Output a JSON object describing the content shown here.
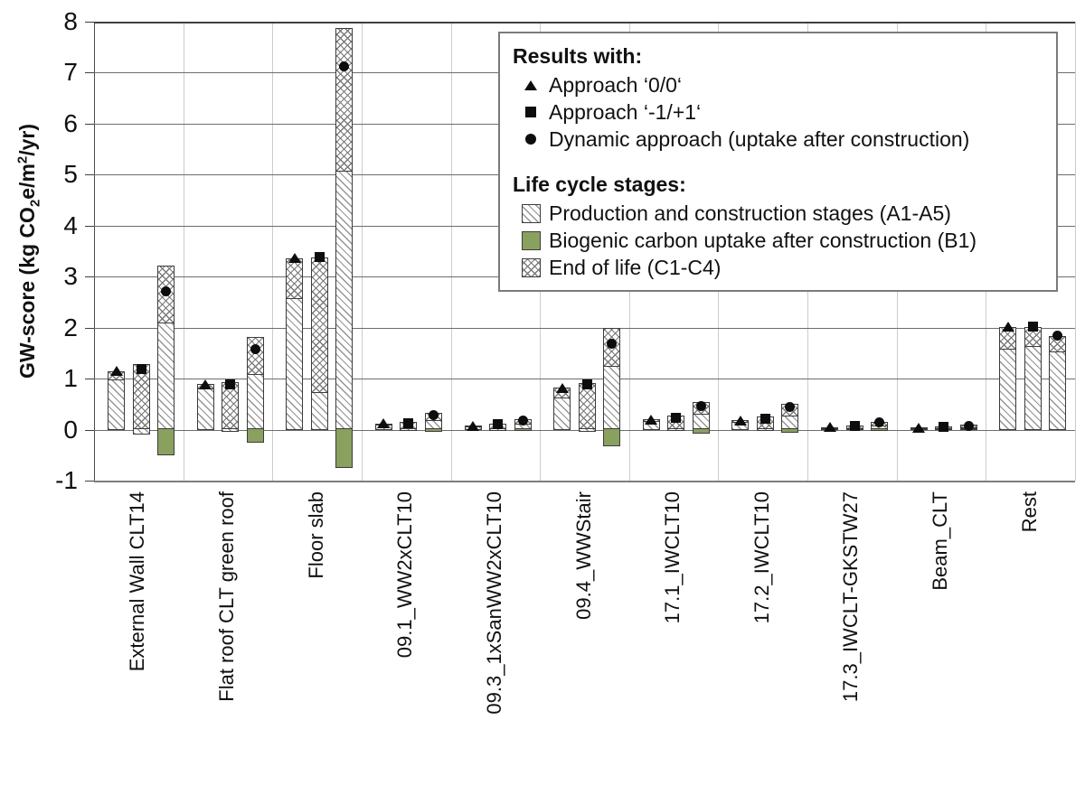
{
  "colors": {
    "biogenic_green": "#8aa05f",
    "bar_border": "#3b3b3b",
    "gridline": "#6d6d6d",
    "category_gridline": "#cccccc",
    "marker_black": "#0d0d0d"
  },
  "axis": {
    "ylabel_parts": {
      "p1": "GW-score (kg CO",
      "sub": "2",
      "p2": "e/m",
      "sup": "2",
      "p3": "/yr)"
    },
    "yticks": [
      8,
      7,
      6,
      5,
      4,
      3,
      2,
      1,
      0,
      -1
    ]
  },
  "legend": {
    "results_title": "Results with:",
    "approaches": [
      {
        "label": "Approach ‘0/0‘",
        "marker": "triangle"
      },
      {
        "label": "Approach ‘-1/+1‘",
        "marker": "square"
      },
      {
        "label": "Dynamic approach (uptake after construction)",
        "marker": "circle"
      }
    ],
    "stages_title": "Life cycle stages:",
    "stages": [
      {
        "label": "Production and construction stages (A1-A5)",
        "pattern": "diagonal-hatch"
      },
      {
        "label": "Biogenic carbon uptake after construction (B1)",
        "pattern": "solid-green",
        "color": "#8aa05f"
      },
      {
        "label": "End of life (C1-C4)",
        "pattern": "crosshatch"
      }
    ]
  },
  "chart_data": {
    "type": "bar",
    "variant": "grouped-stacked",
    "title": "",
    "ylabel": "GW-score (kg CO2e/m2/yr)",
    "ylim": [
      -1,
      8
    ],
    "grid": true,
    "legend_position": "top-right",
    "series": [
      {
        "name": "Approach ‘0/0‘",
        "marker": "triangle"
      },
      {
        "name": "Approach ‘-1/+1‘",
        "marker": "square"
      },
      {
        "name": "Dynamic approach (uptake after construction)",
        "marker": "circle"
      }
    ],
    "stage_keys": {
      "a1a5": "Production and construction stages (A1-A5), diagonal hatch, stacked above zero",
      "c1c4": "End of life (C1-C4), crosshatch, stacked on top of a1a5",
      "a1a5_neg": "A1-A5 portion drawn below zero (diagonal hatch)",
      "b1": "Biogenic carbon uptake after construction (B1), green, below zero",
      "net": "net GW-score shown by the marker"
    },
    "categories": [
      "External Wall CLT14",
      "Flat roof CLT green roof",
      "Floor slab",
      "09.1_WW2xCLT10",
      "09.3_1xSanWW2xCLT10",
      "09.4_WWStair",
      "17.1_IWCLT10",
      "17.2_IWCLT10",
      "17.3_IWCLT-GKSTW27",
      "Beam_CLT",
      "Rest"
    ],
    "groups": [
      {
        "category": "External Wall CLT14",
        "bars": [
          {
            "a1a5": 1.0,
            "c1c4": 0.15,
            "a1a5_neg": 0,
            "b1": 0,
            "net": 1.15
          },
          {
            "a1a5": 0,
            "c1c4": 1.28,
            "a1a5_neg": -0.1,
            "b1": 0,
            "net": 1.18
          },
          {
            "a1a5": 2.1,
            "c1c4": 1.12,
            "a1a5_neg": 0,
            "b1": -0.5,
            "net": 2.72
          }
        ]
      },
      {
        "category": "Flat roof CLT green roof",
        "bars": [
          {
            "a1a5": 0.82,
            "c1c4": 0.07,
            "a1a5_neg": 0,
            "b1": 0,
            "net": 0.89
          },
          {
            "a1a5": 0,
            "c1c4": 0.93,
            "a1a5_neg": -0.05,
            "b1": 0,
            "net": 0.88
          },
          {
            "a1a5": 1.09,
            "c1c4": 0.73,
            "a1a5_neg": 0,
            "b1": -0.25,
            "net": 1.57
          }
        ]
      },
      {
        "category": "Floor slab",
        "bars": [
          {
            "a1a5": 2.58,
            "c1c4": 0.78,
            "a1a5_neg": 0,
            "b1": 0,
            "net": 3.36
          },
          {
            "a1a5": 0.75,
            "c1c4": 2.63,
            "a1a5_neg": 0,
            "b1": 0,
            "net": 3.38
          },
          {
            "a1a5": 5.09,
            "c1c4": 2.79,
            "a1a5_neg": 0,
            "b1": -0.76,
            "net": 7.12
          }
        ]
      },
      {
        "category": "09.1_WW2xCLT10",
        "bars": [
          {
            "a1a5": 0.1,
            "c1c4": 0.02,
            "a1a5_neg": 0,
            "b1": 0,
            "net": 0.12
          },
          {
            "a1a5": 0,
            "c1c4": 0.15,
            "a1a5_neg": -0.02,
            "b1": 0,
            "net": 0.13
          },
          {
            "a1a5": 0.19,
            "c1c4": 0.14,
            "a1a5_neg": 0,
            "b1": -0.04,
            "net": 0.29
          }
        ]
      },
      {
        "category": "09.3_1xSanWW2xCLT10",
        "bars": [
          {
            "a1a5": 0.07,
            "c1c4": 0.01,
            "a1a5_neg": 0,
            "b1": 0,
            "net": 0.08
          },
          {
            "a1a5": 0,
            "c1c4": 0.12,
            "a1a5_neg": -0.02,
            "b1": 0,
            "net": 0.1
          },
          {
            "a1a5": 0.12,
            "c1c4": 0.09,
            "a1a5_neg": 0,
            "b1": -0.03,
            "net": 0.18
          }
        ]
      },
      {
        "category": "09.4_WWStair",
        "bars": [
          {
            "a1a5": 0.63,
            "c1c4": 0.19,
            "a1a5_neg": 0,
            "b1": 0,
            "net": 0.82
          },
          {
            "a1a5": 0,
            "c1c4": 0.92,
            "a1a5_neg": -0.04,
            "b1": 0,
            "net": 0.88
          },
          {
            "a1a5": 1.26,
            "c1c4": 0.74,
            "a1a5_neg": 0,
            "b1": -0.32,
            "net": 1.68
          }
        ]
      },
      {
        "category": "17.1_IWCLT10",
        "bars": [
          {
            "a1a5": 0.17,
            "c1c4": 0.03,
            "a1a5_neg": 0,
            "b1": 0,
            "net": 0.2
          },
          {
            "a1a5": 0,
            "c1c4": 0.27,
            "a1a5_neg": -0.03,
            "b1": 0,
            "net": 0.24
          },
          {
            "a1a5": 0.31,
            "c1c4": 0.23,
            "a1a5_neg": 0,
            "b1": -0.08,
            "net": 0.46
          }
        ]
      },
      {
        "category": "17.2_IWCLT10",
        "bars": [
          {
            "a1a5": 0.15,
            "c1c4": 0.03,
            "a1a5_neg": 0,
            "b1": 0,
            "net": 0.18
          },
          {
            "a1a5": 0,
            "c1c4": 0.25,
            "a1a5_neg": -0.03,
            "b1": 0,
            "net": 0.22
          },
          {
            "a1a5": 0.29,
            "c1c4": 0.21,
            "a1a5_neg": 0,
            "b1": -0.06,
            "net": 0.44
          }
        ]
      },
      {
        "category": "17.3_IWCLT-GKSTW27",
        "bars": [
          {
            "a1a5": 0.04,
            "c1c4": 0.01,
            "a1a5_neg": 0,
            "b1": 0,
            "net": 0.05
          },
          {
            "a1a5": 0,
            "c1c4": 0.08,
            "a1a5_neg": -0.01,
            "b1": 0,
            "net": 0.07
          },
          {
            "a1a5": 0.09,
            "c1c4": 0.07,
            "a1a5_neg": 0,
            "b1": -0.02,
            "net": 0.14
          }
        ]
      },
      {
        "category": "Beam_CLT",
        "bars": [
          {
            "a1a5": 0.03,
            "c1c4": 0.01,
            "a1a5_neg": 0,
            "b1": 0,
            "net": 0.04
          },
          {
            "a1a5": 0,
            "c1c4": 0.07,
            "a1a5_neg": -0.01,
            "b1": 0,
            "net": 0.06
          },
          {
            "a1a5": 0.05,
            "c1c4": 0.04,
            "a1a5_neg": 0,
            "b1": -0.01,
            "net": 0.08
          }
        ]
      },
      {
        "category": "Rest",
        "bars": [
          {
            "a1a5": 1.6,
            "c1c4": 0.42,
            "a1a5_neg": 0,
            "b1": 0,
            "net": 2.02
          },
          {
            "a1a5": 1.65,
            "c1c4": 0.37,
            "a1a5_neg": 0,
            "b1": 0,
            "net": 2.02
          },
          {
            "a1a5": 1.54,
            "c1c4": 0.3,
            "a1a5_neg": 0,
            "b1": 0,
            "net": 1.84
          }
        ]
      }
    ]
  }
}
